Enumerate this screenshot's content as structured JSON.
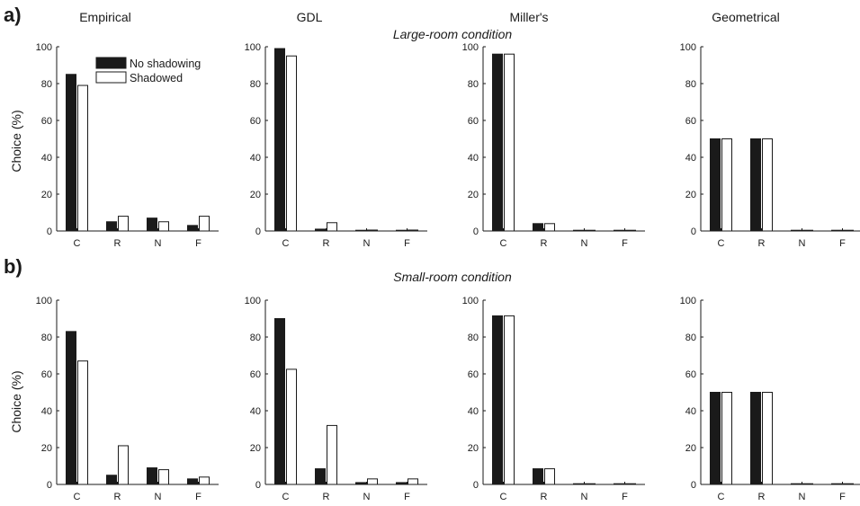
{
  "figure": {
    "panel_labels": [
      "a)",
      "b)"
    ],
    "column_titles": [
      "Empirical",
      "GDL",
      "Miller's",
      "Geometrical"
    ],
    "row_titles": [
      "Large-room condition",
      "Small-room condition"
    ],
    "ylabel": "Choice (%)",
    "legend": [
      "No shadowing",
      "Shadowed"
    ],
    "colors": {
      "no_shadowing": "#1a1a1a",
      "shadowed": "#ffffff",
      "axis": "#1a1a1a"
    }
  },
  "chart_data": [
    {
      "type": "bar",
      "row": "Large-room condition",
      "column": "Empirical",
      "categories": [
        "C",
        "R",
        "N",
        "F"
      ],
      "ylim": [
        0,
        100
      ],
      "yticks": [
        0,
        20,
        40,
        60,
        80,
        100
      ],
      "series": [
        {
          "name": "No shadowing",
          "values": [
            85,
            5,
            7,
            3
          ]
        },
        {
          "name": "Shadowed",
          "values": [
            79,
            8,
            5,
            8
          ]
        }
      ]
    },
    {
      "type": "bar",
      "row": "Large-room condition",
      "column": "GDL",
      "categories": [
        "C",
        "R",
        "N",
        "F"
      ],
      "ylim": [
        0,
        100
      ],
      "yticks": [
        0,
        20,
        40,
        60,
        80,
        100
      ],
      "series": [
        {
          "name": "No shadowing",
          "values": [
            99,
            1,
            0.3,
            0.3
          ]
        },
        {
          "name": "Shadowed",
          "values": [
            95,
            4.5,
            0.5,
            0.5
          ]
        }
      ]
    },
    {
      "type": "bar",
      "row": "Large-room condition",
      "column": "Miller's",
      "categories": [
        "C",
        "R",
        "N",
        "F"
      ],
      "ylim": [
        0,
        100
      ],
      "yticks": [
        0,
        20,
        40,
        60,
        80,
        100
      ],
      "series": [
        {
          "name": "No shadowing",
          "values": [
            96,
            4,
            0.3,
            0.3
          ]
        },
        {
          "name": "Shadowed",
          "values": [
            96,
            4,
            0.3,
            0.3
          ]
        }
      ]
    },
    {
      "type": "bar",
      "row": "Large-room condition",
      "column": "Geometrical",
      "categories": [
        "C",
        "R",
        "N",
        "F"
      ],
      "ylim": [
        0,
        100
      ],
      "yticks": [
        0,
        20,
        40,
        60,
        80,
        100
      ],
      "series": [
        {
          "name": "No shadowing",
          "values": [
            50,
            50,
            0.3,
            0.3
          ]
        },
        {
          "name": "Shadowed",
          "values": [
            50,
            50,
            0.3,
            0.3
          ]
        }
      ]
    },
    {
      "type": "bar",
      "row": "Small-room condition",
      "column": "Empirical",
      "categories": [
        "C",
        "R",
        "N",
        "F"
      ],
      "ylim": [
        0,
        100
      ],
      "yticks": [
        0,
        20,
        40,
        60,
        80,
        100
      ],
      "series": [
        {
          "name": "No shadowing",
          "values": [
            83,
            5,
            9,
            3
          ]
        },
        {
          "name": "Shadowed",
          "values": [
            67,
            21,
            8,
            4
          ]
        }
      ]
    },
    {
      "type": "bar",
      "row": "Small-room condition",
      "column": "GDL",
      "categories": [
        "C",
        "R",
        "N",
        "F"
      ],
      "ylim": [
        0,
        100
      ],
      "yticks": [
        0,
        20,
        40,
        60,
        80,
        100
      ],
      "series": [
        {
          "name": "No shadowing",
          "values": [
            90,
            8.5,
            1,
            1
          ]
        },
        {
          "name": "Shadowed",
          "values": [
            62.5,
            32,
            3,
            3
          ]
        }
      ]
    },
    {
      "type": "bar",
      "row": "Small-room condition",
      "column": "Miller's",
      "categories": [
        "C",
        "R",
        "N",
        "F"
      ],
      "ylim": [
        0,
        100
      ],
      "yticks": [
        0,
        20,
        40,
        60,
        80,
        100
      ],
      "series": [
        {
          "name": "No shadowing",
          "values": [
            91.5,
            8.5,
            0.3,
            0.3
          ]
        },
        {
          "name": "Shadowed",
          "values": [
            91.5,
            8.5,
            0.3,
            0.3
          ]
        }
      ]
    },
    {
      "type": "bar",
      "row": "Small-room condition",
      "column": "Geometrical",
      "categories": [
        "C",
        "R",
        "N",
        "F"
      ],
      "ylim": [
        0,
        100
      ],
      "yticks": [
        0,
        20,
        40,
        60,
        80,
        100
      ],
      "series": [
        {
          "name": "No shadowing",
          "values": [
            50,
            50,
            0.3,
            0.3
          ]
        },
        {
          "name": "Shadowed",
          "values": [
            50,
            50,
            0.3,
            0.3
          ]
        }
      ]
    }
  ]
}
